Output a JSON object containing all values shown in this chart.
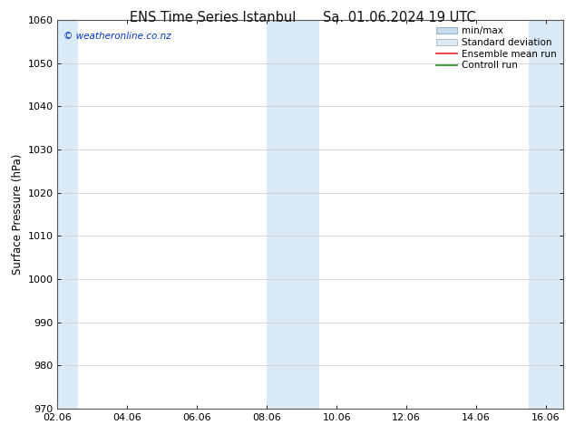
{
  "title_left": "ENS Time Series Istanbul",
  "title_right": "Sa. 01.06.2024 19 UTC",
  "ylabel": "Surface Pressure (hPa)",
  "ylim": [
    970,
    1060
  ],
  "yticks": [
    970,
    980,
    990,
    1000,
    1010,
    1020,
    1030,
    1040,
    1050,
    1060
  ],
  "xlim_start": 0.0,
  "xlim_end": 14.5,
  "xtick_positions": [
    0,
    2,
    4,
    6,
    8,
    10,
    12,
    14
  ],
  "xtick_labels": [
    "02.06",
    "04.06",
    "06.06",
    "08.06",
    "10.06",
    "12.06",
    "14.06",
    "16.06"
  ],
  "blue_bands": [
    {
      "xmin": -0.1,
      "xmax": 0.6
    },
    {
      "xmin": 6.0,
      "xmax": 7.5
    },
    {
      "xmin": 13.5,
      "xmax": 14.5
    }
  ],
  "band_color": "#daeaf6",
  "watermark": "© weatheronline.co.nz",
  "watermark_color": "#0033cc",
  "legend_items": [
    {
      "label": "min/max",
      "color": "#c8dced",
      "type": "hbar",
      "edgecolor": "#8aaabb"
    },
    {
      "label": "Standard deviation",
      "color": "#dde8f0",
      "type": "hbar",
      "edgecolor": "#aabbcc"
    },
    {
      "label": "Ensemble mean run",
      "color": "#ee2222",
      "type": "line"
    },
    {
      "label": "Controll run",
      "color": "#228822",
      "type": "line"
    }
  ],
  "background_color": "#ffffff",
  "grid_color": "#cccccc",
  "title_fontsize": 10.5,
  "axis_fontsize": 8.5,
  "tick_fontsize": 8,
  "legend_fontsize": 7.5
}
